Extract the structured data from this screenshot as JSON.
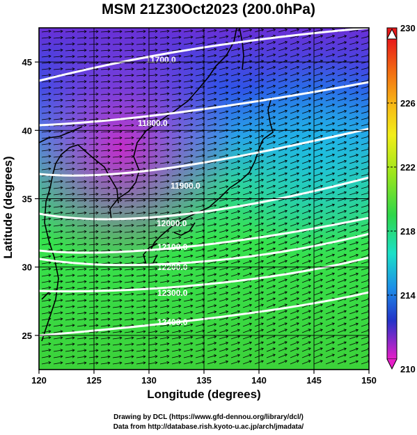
{
  "title": "MSM 21Z30Oct2023 (200.0hPa)",
  "x_axis": {
    "label": "Longitude (degrees)",
    "range": [
      120,
      150
    ],
    "ticks": [
      120,
      125,
      130,
      135,
      140,
      145,
      150
    ],
    "tick_labels": [
      "120",
      "125",
      "130",
      "135",
      "140",
      "145",
      "150"
    ]
  },
  "y_axis": {
    "label": "Latitude  (degrees)",
    "range": [
      22.5,
      47.5
    ],
    "ticks": [
      25,
      30,
      35,
      40,
      45
    ],
    "tick_labels": [
      "25",
      "30",
      "35",
      "40",
      "45"
    ]
  },
  "colorbar": {
    "range": [
      210,
      230
    ],
    "tick_values": [
      210,
      214,
      218,
      222,
      226,
      230
    ],
    "tick_labels": [
      "210",
      "214",
      "218",
      "222",
      "226",
      "230"
    ],
    "dashed_lines": [
      226,
      222,
      218,
      214
    ]
  },
  "contours": [
    {
      "label": "11700.0"
    },
    {
      "label": "11800.0"
    },
    {
      "label": "11900.0"
    },
    {
      "label": "12000.0"
    },
    {
      "label": "12100.0"
    },
    {
      "label": "12200.0"
    },
    {
      "label": "12300.0"
    },
    {
      "label": "12400.0"
    }
  ],
  "credits": {
    "line1": "Drawing by DCL (https://www.gfd-dennou.org/library/dcl/)",
    "line2": "Data from http://database.rish.kyoto-u.ac.jp/arch/jmadata/"
  }
}
